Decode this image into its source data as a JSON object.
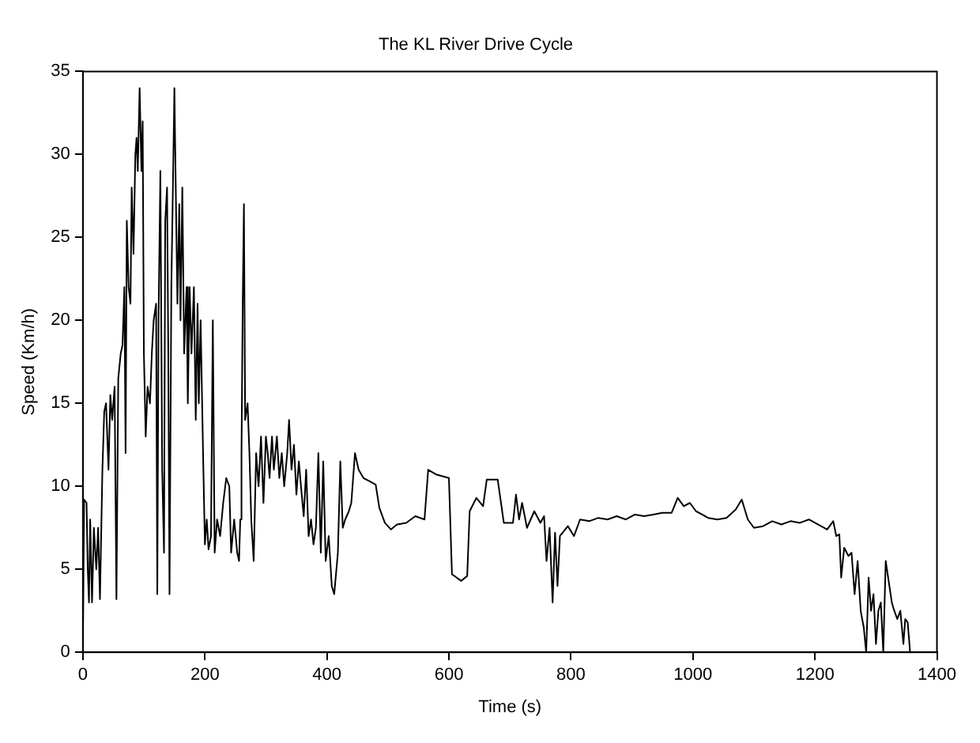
{
  "chart_data": {
    "type": "line",
    "title": "The KL River Drive Cycle",
    "xlabel": "Time (s)",
    "ylabel": "Speed (Km/h)",
    "xlim": [
      0,
      1400
    ],
    "xticks": [
      0,
      200,
      400,
      600,
      800,
      1000,
      1200,
      1400
    ],
    "ylim": [
      0,
      35
    ],
    "yticks": [
      0,
      5,
      10,
      15,
      20,
      25,
      30,
      35
    ],
    "grid": false,
    "legend": false,
    "marker": "none",
    "line_style": "solid",
    "series": [
      {
        "color": "#000000",
        "x": [
          0,
          2,
          6,
          8,
          10,
          12,
          15,
          18,
          22,
          25,
          28,
          32,
          35,
          38,
          42,
          45,
          48,
          52,
          55,
          58,
          62,
          65,
          68,
          70,
          72,
          75,
          78,
          80,
          83,
          86,
          88,
          90,
          93,
          96,
          98,
          100,
          103,
          106,
          110,
          113,
          116,
          120,
          122,
          124,
          127,
          130,
          133,
          135,
          138,
          140,
          142,
          145,
          148,
          150,
          153,
          155,
          158,
          160,
          163,
          166,
          170,
          172,
          175,
          178,
          182,
          185,
          188,
          190,
          193,
          197,
          200,
          203,
          206,
          210,
          213,
          216,
          220,
          225,
          230,
          235,
          240,
          243,
          248,
          253,
          256,
          258,
          260,
          262,
          264,
          266,
          270,
          273,
          276,
          280,
          284,
          288,
          292,
          296,
          300,
          303,
          306,
          310,
          313,
          318,
          322,
          326,
          330,
          335,
          338,
          342,
          346,
          350,
          354,
          358,
          362,
          366,
          370,
          374,
          378,
          382,
          386,
          390,
          394,
          398,
          403,
          408,
          412,
          418,
          422,
          426,
          430,
          436,
          440,
          446,
          452,
          460,
          470,
          480,
          486,
          495,
          505,
          515,
          530,
          545,
          560,
          566,
          580,
          600,
          605,
          620,
          630,
          634,
          645,
          656,
          662,
          680,
          690,
          705,
          710,
          715,
          720,
          728,
          740,
          750,
          756,
          760,
          765,
          770,
          774,
          778,
          782,
          795,
          805,
          815,
          830,
          845,
          860,
          875,
          890,
          905,
          920,
          935,
          950,
          965,
          975,
          985,
          995,
          1005,
          1015,
          1025,
          1040,
          1055,
          1070,
          1080,
          1090,
          1100,
          1115,
          1130,
          1145,
          1160,
          1175,
          1190,
          1200,
          1210,
          1220,
          1230,
          1235,
          1240,
          1243,
          1248,
          1255,
          1260,
          1265,
          1270,
          1275,
          1280,
          1284,
          1288,
          1292,
          1296,
          1300,
          1304,
          1308,
          1312,
          1316,
          1320,
          1326,
          1330,
          1335,
          1340,
          1345,
          1348,
          1352,
          1356
        ],
        "values": [
          0,
          9.2,
          9,
          5,
          3,
          8,
          3,
          7.5,
          5,
          7.5,
          3.2,
          11,
          14.5,
          15,
          11,
          15.5,
          14,
          16,
          3.2,
          16.5,
          18,
          18.5,
          22,
          12,
          26,
          22,
          21,
          28,
          24,
          30,
          31,
          29,
          34,
          29,
          32,
          18,
          13,
          16,
          15,
          18,
          20,
          21,
          3.5,
          20,
          29,
          11,
          6,
          26,
          28,
          18,
          3.5,
          22,
          29,
          34,
          26,
          21,
          27,
          20,
          28,
          18,
          22,
          15,
          22,
          18,
          22,
          14,
          21,
          15,
          20,
          12,
          6.5,
          8,
          6.2,
          7,
          20,
          6,
          8,
          7,
          9,
          10.5,
          10,
          6,
          8,
          6,
          5.5,
          8,
          12,
          21,
          27,
          14,
          15,
          12,
          8,
          5.5,
          12,
          10,
          13,
          9,
          13,
          12,
          10.5,
          13,
          11,
          13,
          10.5,
          12,
          10,
          12,
          14,
          11,
          12.5,
          9.5,
          11.5,
          9.8,
          8.2,
          11,
          7,
          8,
          6.5,
          7.5,
          12,
          6,
          11.5,
          5.5,
          7,
          4,
          3.5,
          6,
          11.5,
          7.5,
          8,
          8.5,
          9,
          12,
          11,
          10.5,
          10.3,
          10.1,
          8.7,
          7.8,
          7.4,
          7.7,
          7.8,
          8.2,
          8,
          11,
          10.7,
          10.5,
          4.7,
          4.3,
          4.6,
          8.5,
          9.3,
          8.8,
          10.4,
          10.4,
          7.8,
          7.8,
          9.5,
          8,
          9,
          7.5,
          8.5,
          7.8,
          8.2,
          5.5,
          7.5,
          3,
          7.2,
          4,
          7,
          7.6,
          7,
          8,
          7.9,
          8.1,
          8,
          8.2,
          8,
          8.3,
          8.2,
          8.3,
          8.4,
          8.4,
          9.3,
          8.8,
          9,
          8.5,
          8.3,
          8.1,
          8,
          8.1,
          8.6,
          9.2,
          8,
          7.5,
          7.6,
          7.9,
          7.7,
          7.9,
          7.8,
          8,
          7.8,
          7.6,
          7.4,
          7.9,
          7,
          7.1,
          4.5,
          6.3,
          5.8,
          6,
          3.5,
          5.5,
          2.5,
          1.5,
          0,
          4.5,
          2.5,
          3.5,
          0.5,
          2.5,
          3,
          0,
          5.5,
          4.5,
          3,
          2.5,
          2,
          2.5,
          0.5,
          2,
          1.8,
          0
        ]
      }
    ]
  }
}
